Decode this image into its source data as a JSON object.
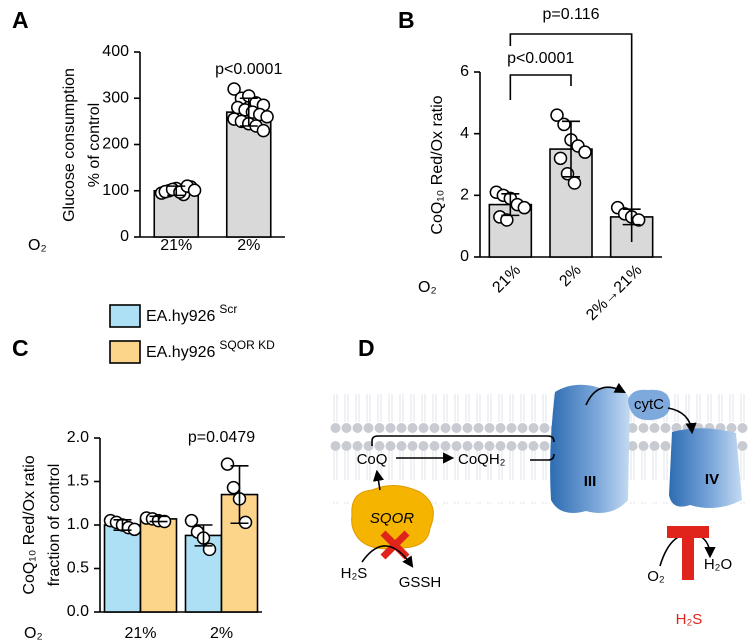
{
  "chart_data": [
    {
      "type": "bar",
      "panel": "A",
      "ylabel": [
        "Glucose consumption",
        "% of control"
      ],
      "xlabel": "O₂",
      "categories": [
        "21%",
        "2%"
      ],
      "values": [
        100,
        270
      ],
      "errors": [
        10,
        30
      ],
      "color": "#d9d9d9",
      "points": [
        [
          95,
          100,
          105,
          92,
          108,
          98,
          103,
          97,
          110,
          101
        ],
        [
          320,
          300,
          305,
          290,
          285,
          280,
          275,
          270,
          265,
          260,
          255,
          250,
          245,
          240,
          230
        ]
      ],
      "ylim": [
        0,
        400
      ],
      "yticks": [
        0,
        100,
        200,
        300,
        400
      ],
      "annotations": [
        {
          "text": "p<0.0001",
          "category": 1
        }
      ]
    },
    {
      "type": "bar",
      "panel": "B",
      "ylabel": [
        "CoQ₁₀ Red/Ox ratio"
      ],
      "xlabel": "O₂",
      "categories": [
        "21%",
        "2%",
        "2%→21%"
      ],
      "values": [
        1.7,
        3.5,
        1.3
      ],
      "errors": [
        0.35,
        0.9,
        0.25
      ],
      "color": "#d9d9d9",
      "points": [
        [
          2.1,
          2.0,
          1.9,
          1.7,
          1.6,
          1.3,
          1.2
        ],
        [
          4.6,
          4.3,
          3.8,
          3.6,
          3.4,
          3.2,
          2.7,
          2.4
        ],
        [
          1.6,
          1.4,
          1.3,
          1.2
        ]
      ],
      "ylim": [
        0,
        6
      ],
      "yticks": [
        0,
        2,
        4,
        6
      ],
      "annotations": [
        {
          "text": "p<0.0001",
          "from": 0,
          "to": 1
        },
        {
          "text": "p=0.116",
          "from": 0,
          "to": 2
        }
      ]
    },
    {
      "type": "bar",
      "panel": "C",
      "ylabel": [
        "CoQ₁₀ Red/Ox ratio",
        "fraction of control"
      ],
      "xlabel": "O₂",
      "categories": [
        "21%",
        "2%"
      ],
      "series": [
        {
          "name": "EA.hy926",
          "name_sup": "Scr",
          "color": "#aee0f5",
          "values": [
            1.0,
            0.88
          ],
          "errors": [
            0.06,
            0.12
          ],
          "points": [
            [
              1.05,
              1.03,
              1.0,
              0.97,
              0.95
            ],
            [
              1.05,
              0.92,
              0.85,
              0.72
            ]
          ]
        },
        {
          "name": "EA.hy926",
          "name_sup": "SQOR KD",
          "color": "#fdd58a",
          "values": [
            1.07,
            1.35
          ],
          "errors": [
            0.03,
            0.33
          ],
          "points": [
            [
              1.08,
              1.07,
              1.05,
              1.04
            ],
            [
              1.7,
              1.43,
              1.3,
              1.03
            ]
          ]
        }
      ],
      "ylim": [
        0,
        2.0
      ],
      "yticks": [
        {
          "value": 0,
          "label": "0.0"
        },
        0.5,
        {
          "value": 1,
          "label": "1.0"
        },
        1.5,
        {
          "value": 2,
          "label": "2.0"
        }
      ],
      "annotations": [
        {
          "text": "p=0.0479",
          "category": 1
        }
      ]
    }
  ],
  "diagram": {
    "panel": "D",
    "coq": "CoQ",
    "coqh2": "CoQH₂",
    "complex3": "III",
    "complex4": "IV",
    "cytc": "cytC",
    "sqor": "SQOR",
    "h2s_in": "H₂S",
    "gssh": "GSSH",
    "o2": "O₂",
    "h2o": "H₂O",
    "h2s_inhibitor": "H₂S"
  }
}
